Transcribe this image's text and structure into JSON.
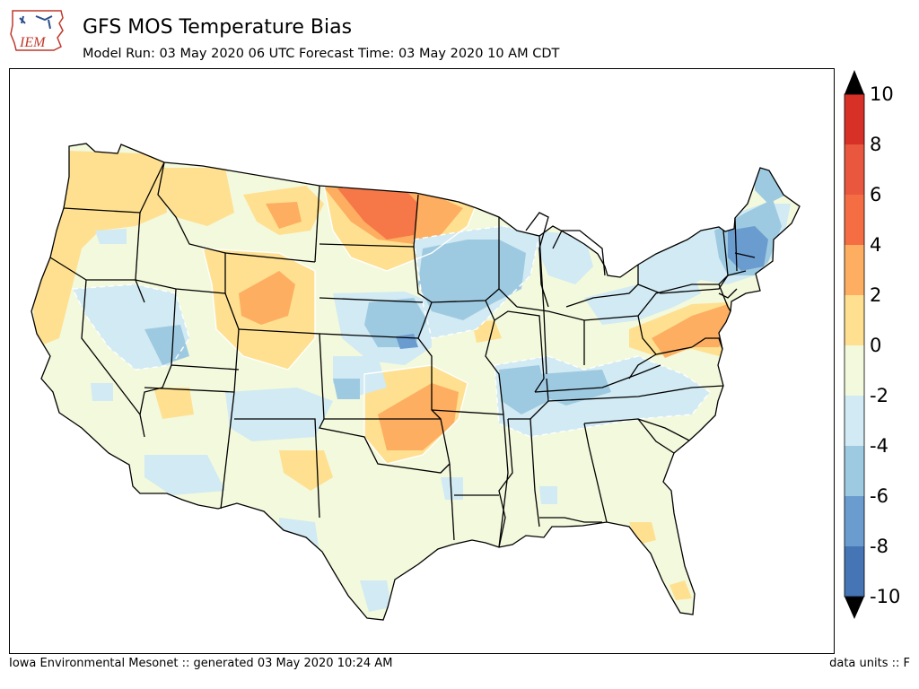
{
  "header": {
    "logo_text": "IEM",
    "title": "GFS MOS Temperature Bias",
    "subtitle": "Model Run: 03 May 2020 06 UTC Forecast Time: 03 May 2020 10 AM CDT"
  },
  "footer": {
    "left": "Iowa Environmental Mesonet :: generated 03 May 2020 10:24 AM",
    "right": "data units :: F"
  },
  "colorbar": {
    "labels": [
      "10",
      "8",
      "6",
      "4",
      "2",
      "0",
      "-2",
      "-4",
      "-6",
      "-8",
      "-10"
    ],
    "bins": [
      {
        "range": "8 to 10",
        "color": "#d73027"
      },
      {
        "range": "6 to 8",
        "color": "#e9573e"
      },
      {
        "range": "4 to 6",
        "color": "#f46d43"
      },
      {
        "range": "2 to 4",
        "color": "#fdae61"
      },
      {
        "range": "0 to 2",
        "color": "#fee090"
      },
      {
        "range": "-2 to 0",
        "color": "#f3f9dc"
      },
      {
        "range": "-4 to -2",
        "color": "#d1eaf3"
      },
      {
        "range": "-6 to -4",
        "color": "#9ecae1"
      },
      {
        "range": "-8 to -6",
        "color": "#6b9ccf"
      },
      {
        "range": "-10 to -8",
        "color": "#4575b4"
      }
    ],
    "over_color": "#000000",
    "under_color": "#000000"
  }
}
